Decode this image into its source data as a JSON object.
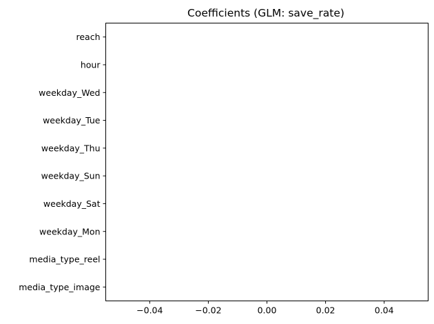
{
  "chart_data": {
    "type": "bar",
    "orientation": "horizontal",
    "title": "Coefficients (GLM: save_rate)",
    "xlabel": "",
    "ylabel": "",
    "categories": [
      "reach",
      "hour",
      "weekday_Wed",
      "weekday_Tue",
      "weekday_Thu",
      "weekday_Sun",
      "weekday_Sat",
      "weekday_Mon",
      "media_type_reel",
      "media_type_image"
    ],
    "values": [
      0,
      0,
      0,
      0,
      0,
      0,
      0,
      0,
      0,
      0
    ],
    "xlim": [
      -0.055,
      0.055
    ],
    "xticks": [
      -0.04,
      -0.02,
      0.0,
      0.02,
      0.04
    ],
    "xtick_labels": [
      "−0.04",
      "−0.02",
      "0.00",
      "0.02",
      "0.04"
    ],
    "grid": false,
    "legend": "none",
    "bar_color": "#1f77b4"
  }
}
